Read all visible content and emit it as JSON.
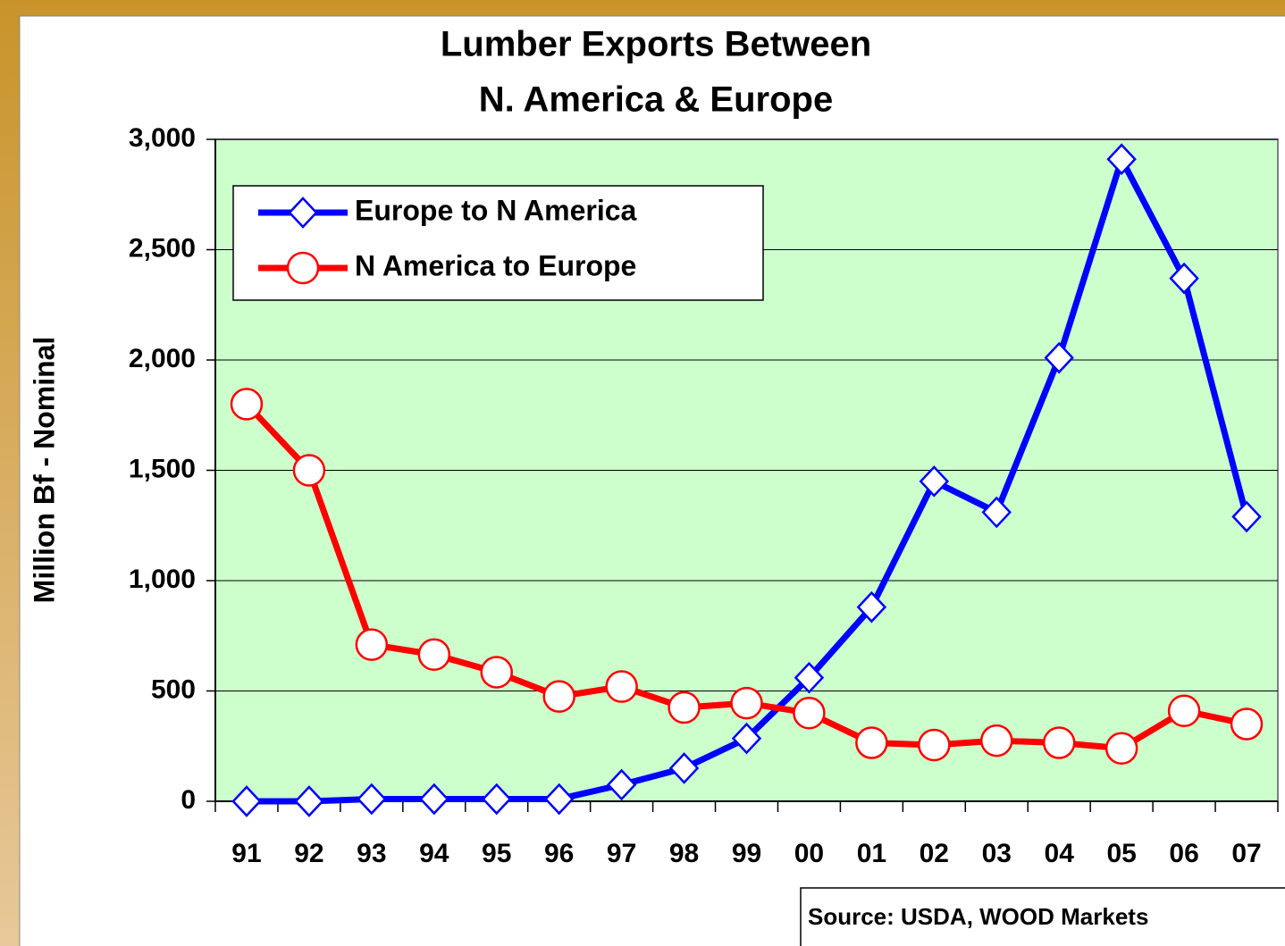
{
  "chart_data": {
    "type": "line",
    "title": "Lumber Exports Between",
    "subtitle": "N. America & Europe",
    "y_label": "Million Bf - Nominal",
    "source": "Source: USDA, WOOD Markets",
    "categories": [
      "91",
      "92",
      "93",
      "94",
      "95",
      "96",
      "97",
      "98",
      "99",
      "00",
      "01",
      "02",
      "03",
      "04",
      "05",
      "06",
      "07"
    ],
    "series": [
      {
        "name": "Europe to N America",
        "color": "#0000ff",
        "marker": "diamond",
        "values": [
          0,
          0,
          10,
          10,
          10,
          10,
          75,
          150,
          285,
          560,
          880,
          1450,
          1310,
          2010,
          2910,
          2370,
          1290
        ]
      },
      {
        "name": "N America to Europe",
        "color": "#ff0000",
        "marker": "circle",
        "values": [
          1800,
          1500,
          710,
          665,
          585,
          475,
          520,
          425,
          445,
          400,
          265,
          255,
          275,
          265,
          240,
          410,
          350
        ]
      }
    ],
    "ylim": [
      0,
      3000
    ],
    "yticks": [
      0,
      {
        "value": 500,
        "label": "500"
      },
      {
        "value": 1000,
        "label": "1,000"
      },
      {
        "value": 1500,
        "label": "1,500"
      },
      {
        "value": 2000,
        "label": "2,000"
      },
      {
        "value": 2500,
        "label": "2,500"
      },
      {
        "value": 3000,
        "label": "3,000"
      }
    ],
    "grid": true,
    "legend": "upper left",
    "plot_color": "#ccffcc"
  }
}
